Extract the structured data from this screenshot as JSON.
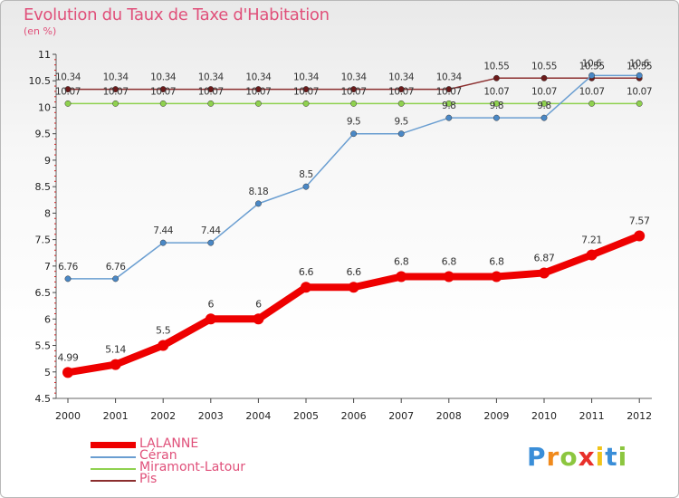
{
  "title": "Evolution du Taux de Taxe d'Habitation",
  "subtitle": "(en %)",
  "colors": {
    "title": "#e0507a",
    "lalanne": "#ee0000",
    "ceran": "#6a9ed1",
    "miramont": "#8fd14f",
    "pis": "#8b2e2e",
    "grid_dash": "#cc2222"
  },
  "logo": {
    "text": "Proxiti",
    "letters": [
      "P",
      "r",
      "o",
      "x",
      "i",
      "t",
      "i"
    ]
  },
  "chart_data": {
    "type": "line",
    "x": [
      "2000",
      "2001",
      "2002",
      "2003",
      "2004",
      "2005",
      "2006",
      "2007",
      "2008",
      "2009",
      "2010",
      "2011",
      "2012"
    ],
    "ylim": [
      4.5,
      11
    ],
    "yticks": [
      "4.5",
      "5",
      "5.5",
      "6",
      "6.5",
      "7",
      "7.5",
      "8",
      "8.5",
      "9",
      "9.5",
      "10",
      "10.5",
      "11"
    ],
    "legend_position": "bottom-left",
    "series": [
      {
        "name": "LALANNE",
        "values": [
          4.99,
          5.14,
          5.5,
          6,
          6,
          6.6,
          6.6,
          6.8,
          6.8,
          6.8,
          6.87,
          7.21,
          7.57
        ],
        "labels": [
          "4.99",
          "5.14",
          "5.5",
          "6",
          "6",
          "6.6",
          "6.6",
          "6.8",
          "6.8",
          "6.8",
          "6.87",
          "7.21",
          "7.57"
        ]
      },
      {
        "name": "Céran",
        "values": [
          6.76,
          6.76,
          7.44,
          7.44,
          8.18,
          8.5,
          9.5,
          9.5,
          9.8,
          9.8,
          9.8,
          10.6,
          10.6
        ],
        "labels": [
          "6.76",
          "6.76",
          "7.44",
          "7.44",
          "8.18",
          "8.5",
          "9.5",
          "9.5",
          "9.8",
          "9.8",
          "9.8",
          "10.6",
          "10.6"
        ]
      },
      {
        "name": "Miramont-Latour",
        "values": [
          10.07,
          10.07,
          10.07,
          10.07,
          10.07,
          10.07,
          10.07,
          10.07,
          10.07,
          10.07,
          10.07,
          10.07,
          10.07
        ],
        "labels": [
          "10.07",
          "10.07",
          "10.07",
          "10.07",
          "10.07",
          "10.07",
          "10.07",
          "10.07",
          "10.07",
          "10.07",
          "10.07",
          "10.07",
          "10.07"
        ]
      },
      {
        "name": "Pis",
        "values": [
          10.34,
          10.34,
          10.34,
          10.34,
          10.34,
          10.34,
          10.34,
          10.34,
          10.34,
          10.55,
          10.55,
          10.55,
          10.55
        ],
        "labels": [
          "10.34",
          "10.34",
          "10.34",
          "10.34",
          "10.34",
          "10.34",
          "10.34",
          "10.34",
          "10.34",
          "10.55",
          "10.55",
          "10.55",
          "10.55"
        ]
      }
    ]
  }
}
